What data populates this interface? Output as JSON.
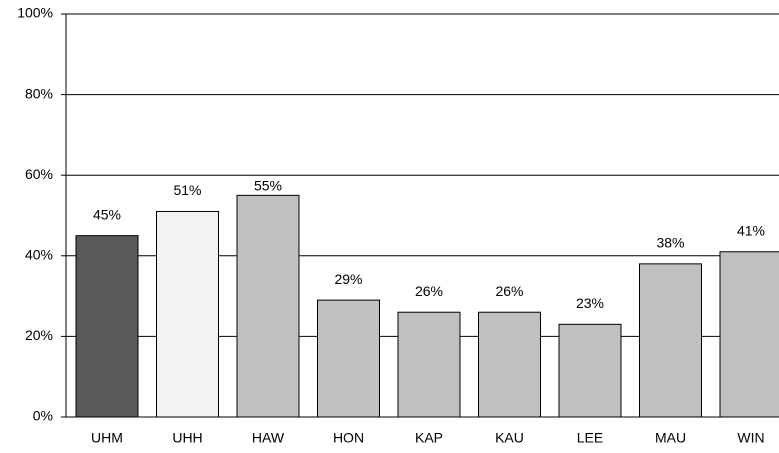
{
  "chart_data": {
    "type": "bar",
    "categories": [
      "UHM",
      "UHH",
      "HAW",
      "HON",
      "KAP",
      "KAU",
      "LEE",
      "MAU",
      "WIN"
    ],
    "values": [
      45,
      51,
      55,
      29,
      26,
      26,
      23,
      38,
      41
    ],
    "value_labels": [
      "45%",
      "51%",
      "55%",
      "29%",
      "26%",
      "26%",
      "23%",
      "38%",
      "41%"
    ],
    "colors": [
      "#595959",
      "#f2f2f2",
      "#c0c0c0",
      "#c0c0c0",
      "#c0c0c0",
      "#c0c0c0",
      "#c0c0c0",
      "#c0c0c0",
      "#c0c0c0"
    ],
    "ylim": [
      0,
      100
    ],
    "yticks": [
      {
        "value": 0,
        "label": "0%"
      },
      {
        "value": 20,
        "label": "20%"
      },
      {
        "value": 40,
        "label": "40%"
      },
      {
        "value": 60,
        "label": "60%"
      },
      {
        "value": 80,
        "label": "80%"
      },
      {
        "value": 100,
        "label": "100%"
      }
    ],
    "grid": true
  }
}
